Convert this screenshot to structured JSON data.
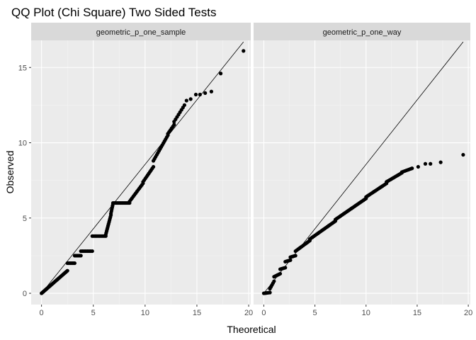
{
  "chart_data": {
    "type": "scatter",
    "title": "QQ Plot (Chi Square) Two Sided Tests",
    "xlabel": "Theoretical",
    "ylabel": "Observed",
    "xlim": [
      -1,
      20.2
    ],
    "ylim": [
      -0.75,
      16.8
    ],
    "x_ticks": [
      0,
      5,
      10,
      15,
      20
    ],
    "y_ticks": [
      0,
      5,
      10,
      15
    ],
    "grid": true,
    "reference_line": {
      "x": [
        0,
        19.5
      ],
      "y": [
        0,
        16.7
      ]
    },
    "facets": [
      {
        "name": "geometric_p_one_sample",
        "segments": [
          {
            "x": [
              0,
              0.5
            ],
            "y": [
              0,
              0.3
            ],
            "n": 8
          },
          {
            "x": [
              0.5,
              2.5
            ],
            "y": [
              0.3,
              1.5
            ],
            "n": 24
          },
          {
            "x": [
              2.5,
              3.2
            ],
            "y": [
              2.0,
              2.0
            ],
            "n": 8
          },
          {
            "x": [
              3.2,
              3.8
            ],
            "y": [
              2.5,
              2.5
            ],
            "n": 7
          },
          {
            "x": [
              3.8,
              4.9
            ],
            "y": [
              2.8,
              2.8
            ],
            "n": 8
          },
          {
            "x": [
              4.9,
              6.2
            ],
            "y": [
              3.8,
              3.8
            ],
            "n": 10
          },
          {
            "x": [
              6.2,
              6.7
            ],
            "y": [
              3.9,
              5.2
            ],
            "n": 12
          },
          {
            "x": [
              6.7,
              6.9
            ],
            "y": [
              5.3,
              5.95
            ],
            "n": 6
          },
          {
            "x": [
              6.9,
              8.5
            ],
            "y": [
              6.0,
              6.0
            ],
            "n": 14
          },
          {
            "x": [
              8.5,
              9.8
            ],
            "y": [
              6.1,
              7.3
            ],
            "n": 12
          },
          {
            "x": [
              9.8,
              10.8
            ],
            "y": [
              7.4,
              8.4
            ],
            "n": 10
          },
          {
            "x": [
              10.8,
              12.2
            ],
            "y": [
              8.8,
              10.5
            ],
            "n": 14
          },
          {
            "x": [
              12.2,
              12.8
            ],
            "y": [
              10.6,
              11.2
            ],
            "n": 6
          },
          {
            "x": [
              12.8,
              13.8
            ],
            "y": [
              11.4,
              12.5
            ],
            "n": 8
          }
        ],
        "points": [
          {
            "x": 14.0,
            "y": 12.8
          },
          {
            "x": 14.4,
            "y": 12.9
          },
          {
            "x": 14.9,
            "y": 13.2
          },
          {
            "x": 15.3,
            "y": 13.2
          },
          {
            "x": 15.8,
            "y": 13.3
          },
          {
            "x": 16.4,
            "y": 13.4
          },
          {
            "x": 17.3,
            "y": 14.6
          },
          {
            "x": 19.5,
            "y": 16.1
          }
        ]
      },
      {
        "name": "geometric_p_one_way",
        "segments": [
          {
            "x": [
              0,
              0.6
            ],
            "y": [
              0,
              0.05
            ],
            "n": 6
          },
          {
            "x": [
              0.6,
              1.0
            ],
            "y": [
              0.3,
              0.8
            ],
            "n": 5
          },
          {
            "x": [
              1.0,
              1.6
            ],
            "y": [
              1.1,
              1.3
            ],
            "n": 6
          },
          {
            "x": [
              1.6,
              2.1
            ],
            "y": [
              1.6,
              1.7
            ],
            "n": 5
          },
          {
            "x": [
              2.1,
              2.6
            ],
            "y": [
              2.1,
              2.2
            ],
            "n": 5
          },
          {
            "x": [
              2.6,
              3.1
            ],
            "y": [
              2.4,
              2.5
            ],
            "n": 5
          },
          {
            "x": [
              3.1,
              4.5
            ],
            "y": [
              2.8,
              3.5
            ],
            "n": 12
          },
          {
            "x": [
              4.5,
              7.0
            ],
            "y": [
              3.6,
              4.8
            ],
            "n": 20
          },
          {
            "x": [
              7.0,
              10.0
            ],
            "y": [
              4.9,
              6.3
            ],
            "n": 24
          },
          {
            "x": [
              10.0,
              12.0
            ],
            "y": [
              6.4,
              7.3
            ],
            "n": 16
          },
          {
            "x": [
              12.0,
              13.5
            ],
            "y": [
              7.4,
              8.0
            ],
            "n": 12
          },
          {
            "x": [
              13.5,
              14.5
            ],
            "y": [
              8.05,
              8.3
            ],
            "n": 8
          }
        ],
        "points": [
          {
            "x": 15.1,
            "y": 8.4
          },
          {
            "x": 15.8,
            "y": 8.6
          },
          {
            "x": 16.3,
            "y": 8.6
          },
          {
            "x": 17.3,
            "y": 8.7
          },
          {
            "x": 19.5,
            "y": 9.2
          }
        ]
      }
    ]
  }
}
